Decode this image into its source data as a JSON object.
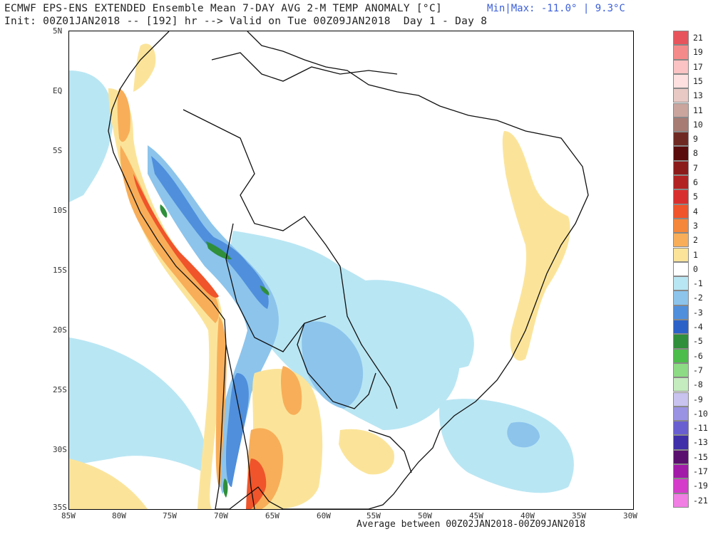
{
  "header": {
    "title": "ECMWF EPS-ENS EXTENDED Ensemble Mean 7-DAY AVG 2-M TEMP ANOMALY [°C]",
    "subtitle": "Init: 00Z01JAN2018 -- [192] hr --> Valid on Tue 00Z09JAN2018  Day 1 - Day 8",
    "minmax": "Min|Max: -11.0° | 9.3°C"
  },
  "footer": "Average between 00Z02JAN2018-00Z09JAN2018",
  "axes": {
    "lat_labels": [
      "5N",
      "EQ",
      "5S",
      "10S",
      "15S",
      "20S",
      "25S",
      "30S",
      "35S"
    ],
    "lon_labels": [
      "85W",
      "80W",
      "75W",
      "70W",
      "65W",
      "60W",
      "55W",
      "50W",
      "45W",
      "40W",
      "35W",
      "30W"
    ]
  },
  "legend": {
    "labels": [
      "21",
      "19",
      "17",
      "15",
      "13",
      "11",
      "10",
      "9",
      "8",
      "7",
      "6",
      "5",
      "4",
      "3",
      "2",
      "1",
      "0",
      "-1",
      "-2",
      "-3",
      "-4",
      "-5",
      "-6",
      "-7",
      "-8",
      "-9",
      "-10",
      "-11",
      "-13",
      "-15",
      "-17",
      "-19",
      "-21"
    ],
    "colors": [
      "#e8545b",
      "#f58a8a",
      "#fbc3c3",
      "#fde0df",
      "#e8c9c4",
      "#c9a59e",
      "#a67c73",
      "#6e2a22",
      "#5a0c0c",
      "#8b1a1a",
      "#b22222",
      "#d92e2e",
      "#f0542a",
      "#f5873a",
      "#f8ae58",
      "#fbe49a",
      "#ffffff",
      "#b9e6f3",
      "#8cc4ec",
      "#4f8fdc",
      "#2c62c8",
      "#2f8f3a",
      "#4cbd4a",
      "#8ddb84",
      "#c4ecbf",
      "#c8c3ef",
      "#9a92e2",
      "#6a5fd0",
      "#3f2fa8",
      "#5a0f6e",
      "#a11aa8",
      "#d43cc9",
      "#f07ee3"
    ]
  },
  "map_colors": {
    "land_outline": "#111111",
    "neg1": "#b9e6f3",
    "neg2": "#8cc4ec",
    "neg3": "#4f8fdc",
    "neg5": "#2f8f3a",
    "pos1": "#fbe49a",
    "pos2": "#f8ae58",
    "pos4": "#f0542a"
  }
}
